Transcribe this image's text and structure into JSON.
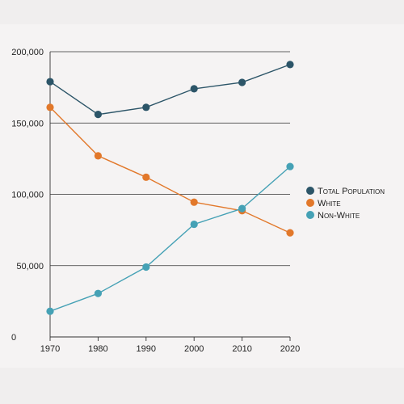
{
  "chart_data": {
    "type": "line",
    "x": [
      1970,
      1980,
      1990,
      2000,
      2010,
      2020
    ],
    "x_tick_labels": [
      "1970",
      "1980",
      "1990",
      "2000",
      "2010",
      "2020"
    ],
    "y_tick_values": [
      0,
      50000,
      100000,
      150000,
      200000
    ],
    "y_tick_labels": [
      "0",
      "50,000",
      "100,000",
      "150,000",
      "200,000"
    ],
    "ylim": [
      0,
      200000
    ],
    "xlim": [
      1970,
      2020
    ],
    "grid": "horizontal",
    "legend_position": "right",
    "title": "",
    "xlabel": "",
    "ylabel": "",
    "series": [
      {
        "name": "Total Population",
        "color": "#2c5568",
        "values": [
          179000,
          156000,
          161000,
          174000,
          178500,
          191000
        ]
      },
      {
        "name": "White",
        "color": "#e2782a",
        "values": [
          161000,
          127000,
          112000,
          94500,
          88500,
          73000
        ]
      },
      {
        "name": "Non-White",
        "color": "#45a1b5",
        "values": [
          18000,
          30500,
          49000,
          79000,
          90000,
          119500
        ]
      }
    ]
  }
}
